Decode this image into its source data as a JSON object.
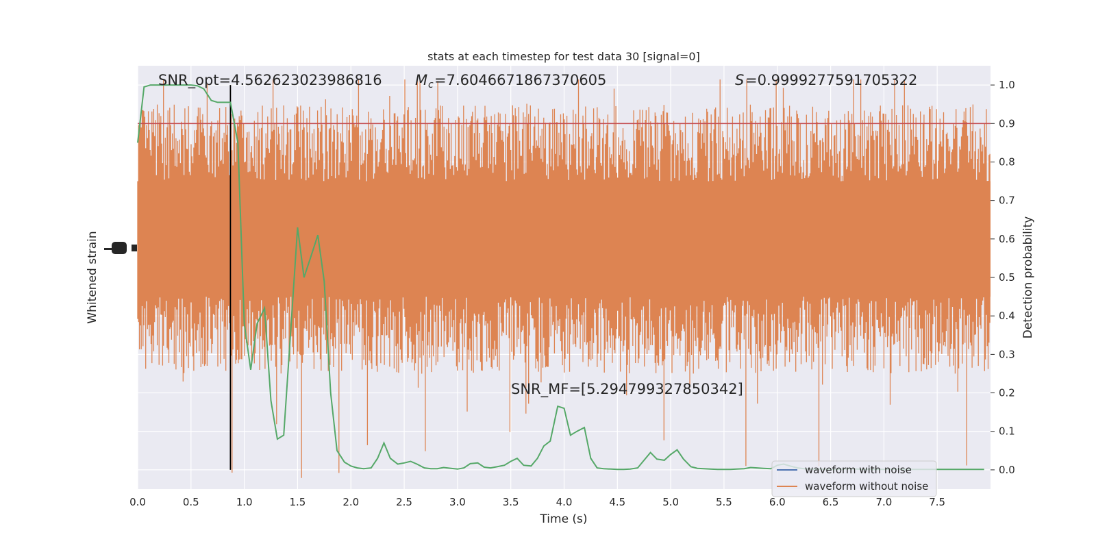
{
  "chart_data": {
    "type": "line",
    "title": "stats at each timestep for test data 30 [signal=0]",
    "xlabel": "Time (s)",
    "ylabel_left": "Whitened strain",
    "ylabel_right": "Detection probability",
    "xlim": [
      0,
      8
    ],
    "ylim_right": [
      -0.05,
      1.05
    ],
    "grid": true,
    "x_ticks": [
      "0.0",
      "0.5",
      "1.0",
      "1.5",
      "2.0",
      "2.5",
      "3.0",
      "3.5",
      "4.0",
      "4.5",
      "5.0",
      "5.5",
      "6.0",
      "6.5",
      "7.0",
      "7.5"
    ],
    "y_right_ticks": [
      "0.0",
      "0.1",
      "0.2",
      "0.3",
      "0.4",
      "0.5",
      "0.6",
      "0.7",
      "0.8",
      "0.9",
      "1.0"
    ],
    "threshold": 0.9,
    "marker_time": 0.87,
    "annotations": {
      "snr_opt": "SNR_opt=4.562623023986816",
      "mc": "=7.6046671867370605",
      "s": "=0.9999277591705322",
      "snr_mf": "SNR_MF=[5.294799327850342]"
    },
    "legend": {
      "placement": "lower-right",
      "entries": [
        {
          "label": "waveform with noise",
          "color": "#4c72b0"
        },
        {
          "label": "waveform without noise",
          "color": "#dd8452"
        }
      ]
    },
    "colors": {
      "noise": "#dd8452",
      "probability": "#55a868",
      "threshold": "#c44e52",
      "background": "#eaeaf2"
    },
    "series": [
      {
        "name": "Detection probability",
        "x": [
          0.0,
          0.06,
          0.12,
          0.19,
          0.25,
          0.31,
          0.37,
          0.44,
          0.5,
          0.56,
          0.62,
          0.69,
          0.75,
          0.81,
          0.87,
          0.94,
          1.0,
          1.06,
          1.12,
          1.19,
          1.25,
          1.31,
          1.37,
          1.44,
          1.5,
          1.56,
          1.62,
          1.69,
          1.75,
          1.81,
          1.87,
          1.94,
          2.0,
          2.06,
          2.12,
          2.19,
          2.25,
          2.31,
          2.37,
          2.44,
          2.5,
          2.56,
          2.62,
          2.69,
          2.75,
          2.81,
          2.87,
          2.94,
          3.0,
          3.06,
          3.12,
          3.19,
          3.25,
          3.31,
          3.37,
          3.44,
          3.5,
          3.56,
          3.62,
          3.69,
          3.75,
          3.81,
          3.87,
          3.94,
          4.0,
          4.06,
          4.12,
          4.19,
          4.25,
          4.31,
          4.37,
          4.44,
          4.5,
          4.56,
          4.62,
          4.69,
          4.75,
          4.81,
          4.87,
          4.94,
          5.0,
          5.06,
          5.12,
          5.19,
          5.25,
          5.31,
          5.37,
          5.44,
          5.5,
          5.56,
          5.62,
          5.69,
          5.75,
          5.81,
          5.87,
          5.94,
          6.0,
          6.06,
          6.12,
          6.19,
          6.25,
          6.31,
          6.37,
          6.44,
          6.5,
          6.56,
          6.62,
          6.69,
          6.75,
          6.81,
          6.87,
          6.94,
          7.0,
          7.06,
          7.12,
          7.19,
          7.25,
          7.31,
          7.37,
          7.44,
          7.5,
          7.56,
          7.62,
          7.69,
          7.75,
          7.81,
          7.87,
          7.94
        ],
        "values": [
          0.85,
          0.995,
          1.0,
          1.0,
          1.0,
          1.0,
          1.0,
          1.0,
          1.0,
          0.998,
          0.99,
          0.96,
          0.955,
          0.955,
          0.955,
          0.85,
          0.38,
          0.26,
          0.38,
          0.42,
          0.18,
          0.08,
          0.09,
          0.38,
          0.63,
          0.5,
          0.55,
          0.61,
          0.49,
          0.2,
          0.05,
          0.02,
          0.01,
          0.005,
          0.003,
          0.005,
          0.03,
          0.07,
          0.03,
          0.015,
          0.018,
          0.022,
          0.015,
          0.005,
          0.003,
          0.003,
          0.006,
          0.004,
          0.002,
          0.005,
          0.016,
          0.018,
          0.007,
          0.005,
          0.008,
          0.012,
          0.022,
          0.03,
          0.012,
          0.01,
          0.03,
          0.062,
          0.075,
          0.165,
          0.16,
          0.09,
          0.1,
          0.11,
          0.03,
          0.005,
          0.003,
          0.002,
          0.001,
          0.001,
          0.002,
          0.005,
          0.025,
          0.045,
          0.028,
          0.025,
          0.04,
          0.052,
          0.028,
          0.008,
          0.004,
          0.003,
          0.002,
          0.001,
          0.001,
          0.001,
          0.002,
          0.003,
          0.006,
          0.005,
          0.004,
          0.003,
          0.012,
          0.015,
          0.01,
          0.005,
          0.003,
          0.002,
          0.002,
          0.002,
          0.001,
          0.001,
          0.002,
          0.003,
          0.002,
          0.001,
          0.001,
          0.001,
          0.001,
          0.002,
          0.002,
          0.001,
          0.001,
          0.001,
          0.001,
          0.001,
          0.001,
          0.001,
          0.001,
          0.001,
          0.001,
          0.001,
          0.001,
          0.001
        ]
      }
    ]
  }
}
